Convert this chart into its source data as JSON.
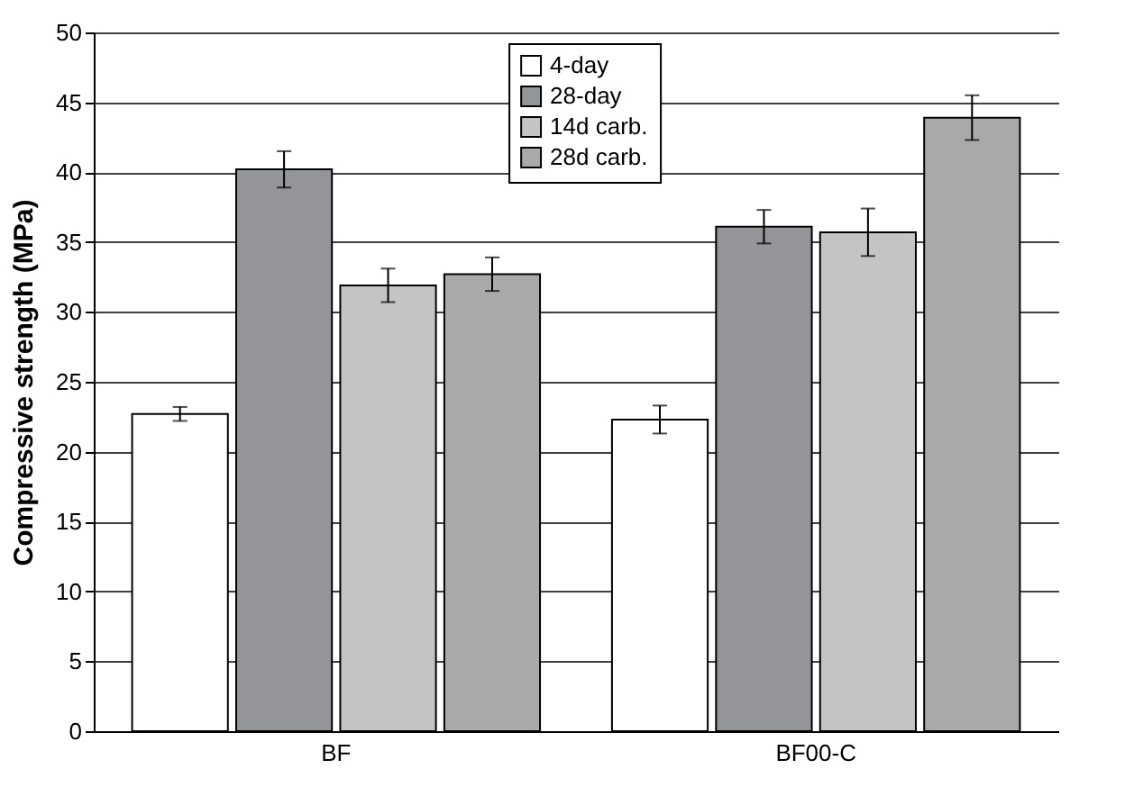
{
  "chart_data": {
    "type": "bar",
    "ylabel": "Compressive strength (MPa)",
    "categories": [
      "BF",
      "BF00-C"
    ],
    "series": [
      {
        "name": "4-day",
        "color": "#ffffff",
        "values": [
          22.7,
          22.3
        ],
        "errors": [
          0.5,
          1.0
        ]
      },
      {
        "name": "28-day",
        "color": "#939598",
        "values": [
          40.2,
          36.1
        ],
        "errors": [
          1.3,
          1.2
        ]
      },
      {
        "name": "14d carb.",
        "color": "#c4c4c4",
        "values": [
          31.9,
          35.7
        ],
        "errors": [
          1.2,
          1.7
        ]
      },
      {
        "name": "28d carb.",
        "color": "#a9a9a9",
        "values": [
          32.7,
          43.9
        ],
        "errors": [
          1.2,
          1.6
        ]
      }
    ],
    "ylim": [
      0,
      50
    ],
    "yticks": [
      0,
      5,
      10,
      15,
      20,
      25,
      30,
      35,
      40,
      45,
      50
    ],
    "grid": "y",
    "legend": "top right"
  }
}
